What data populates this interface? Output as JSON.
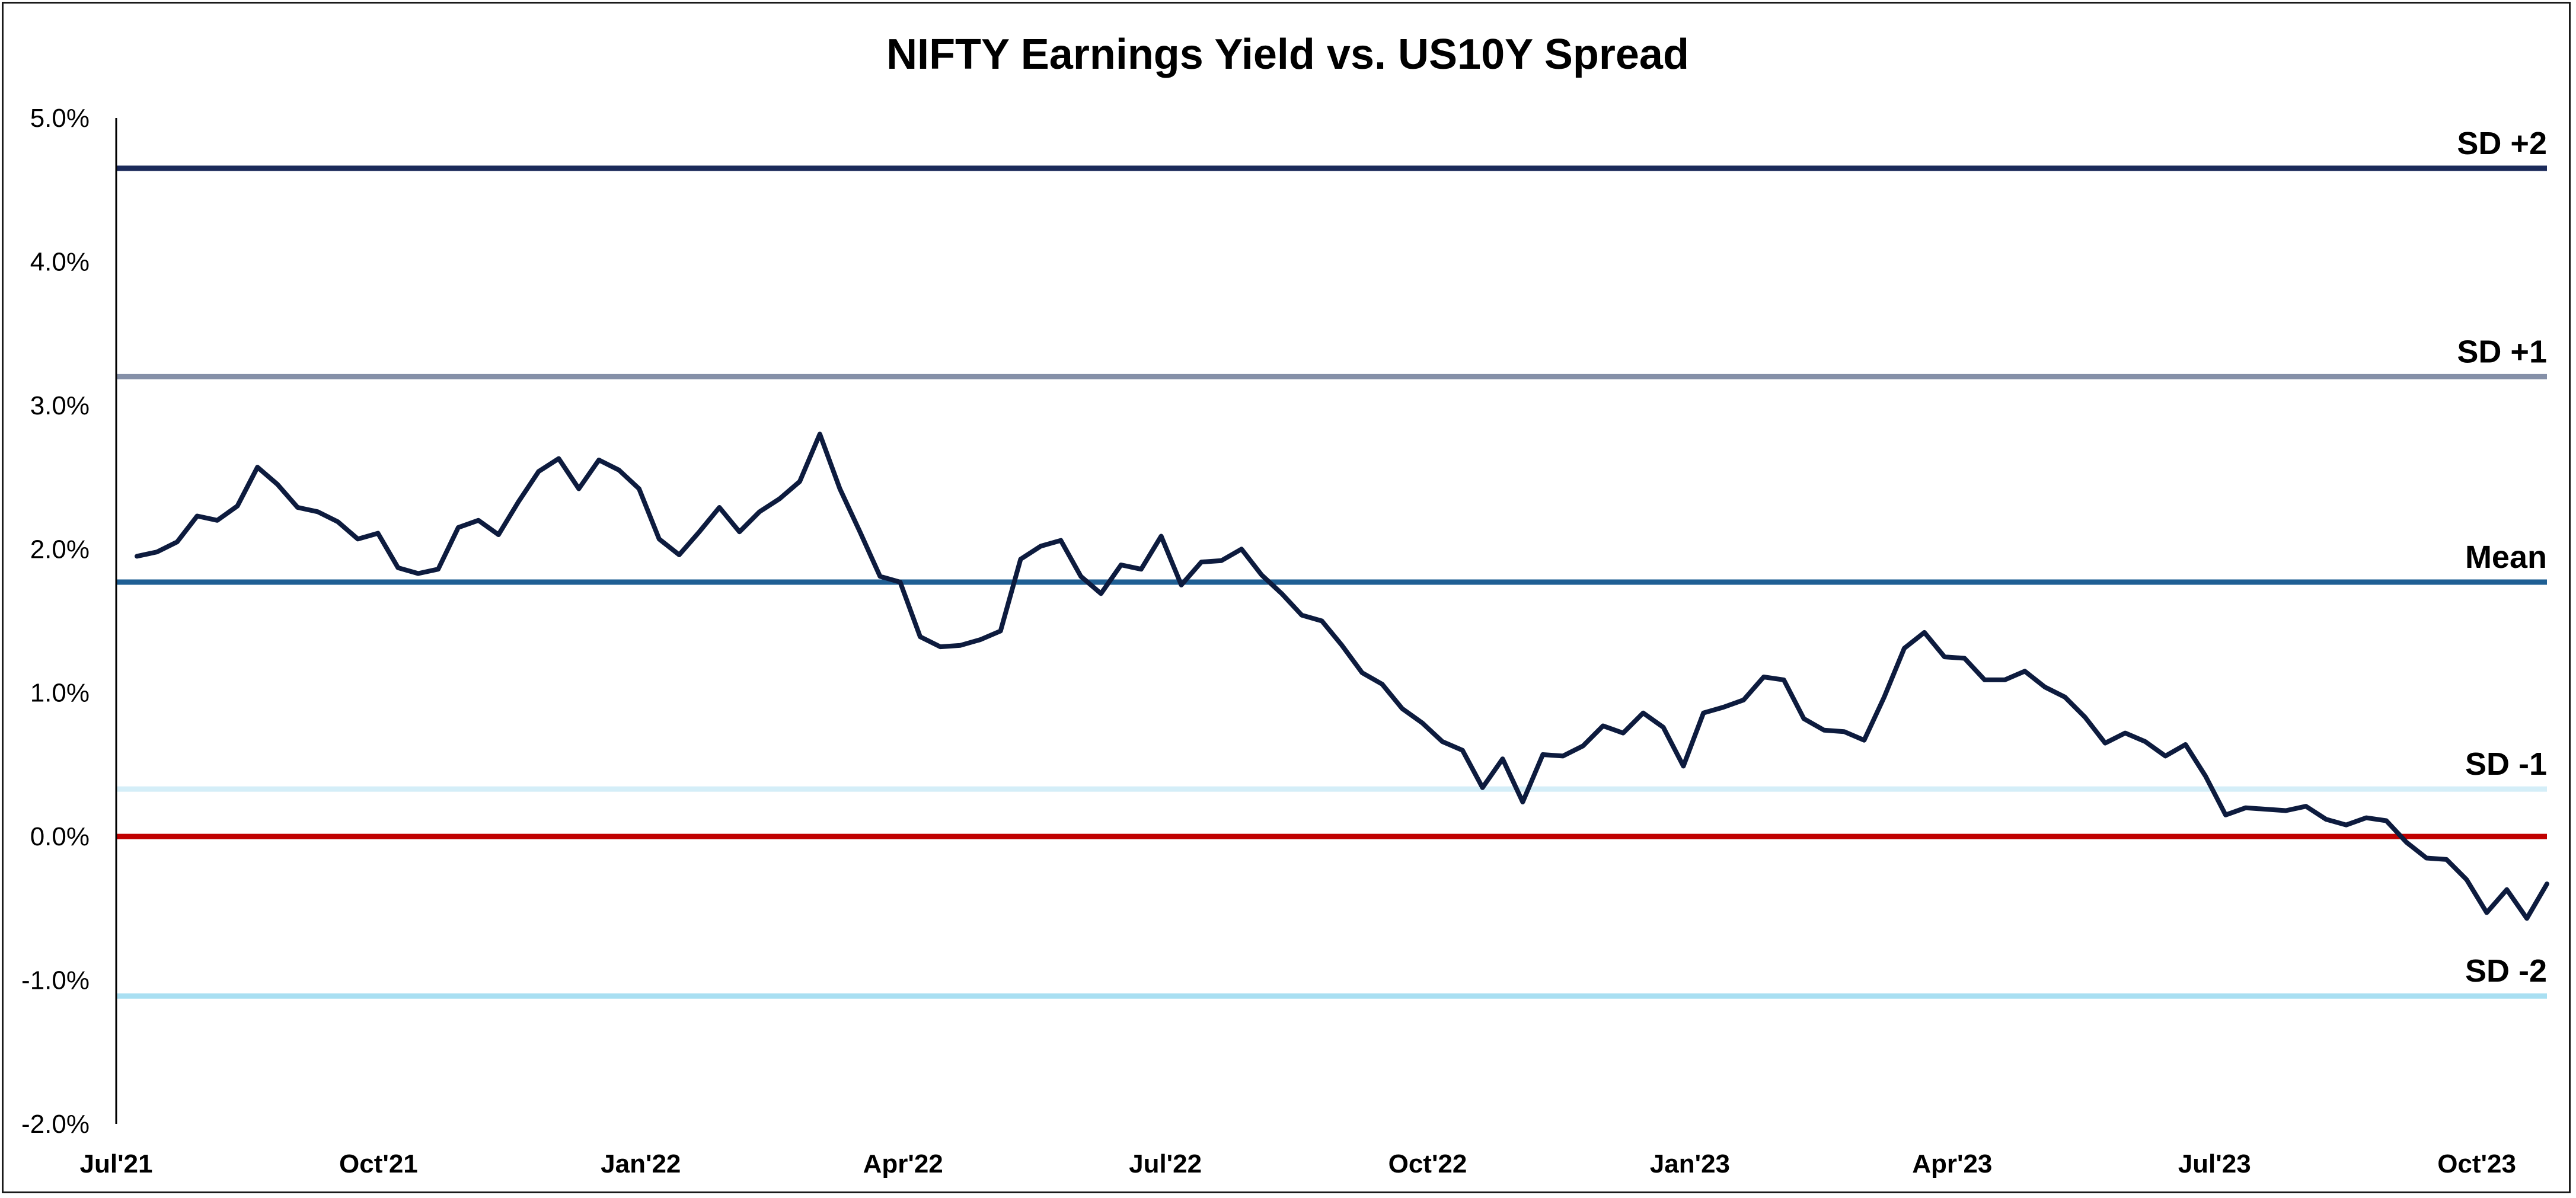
{
  "chart_data": {
    "type": "line",
    "title": "NIFTY Earnings Yield vs. US10Y Spread",
    "xlabel": "",
    "ylabel": "",
    "ylim": [
      -2.0,
      5.0
    ],
    "yticks": [
      "5.0%",
      "4.0%",
      "3.0%",
      "2.0%",
      "1.0%",
      "0.0%",
      "-1.0%",
      "-2.0%"
    ],
    "ytick_values": [
      5,
      4,
      3,
      2,
      1,
      0,
      -1,
      -2
    ],
    "xticks": [
      "Jul'21",
      "Oct'21",
      "Jan'22",
      "Apr'22",
      "Jul'22",
      "Oct'22",
      "Jan'23",
      "Apr'23",
      "Jul'23",
      "Oct'23"
    ],
    "grid": false,
    "reference_lines": [
      {
        "label": "SD +2",
        "value": 4.65,
        "color": "#1b2a5a"
      },
      {
        "label": "SD +1",
        "value": 3.2,
        "color": "#8590a8"
      },
      {
        "label": "Mean",
        "value": 1.77,
        "color": "#1f5f94"
      },
      {
        "label": "SD -1",
        "value": 0.33,
        "color": "#d4eef8"
      },
      {
        "label": "",
        "value": 0.0,
        "color": "#c00000"
      },
      {
        "label": "SD -2",
        "value": -1.11,
        "color": "#a9dff2"
      }
    ],
    "series": [
      {
        "color": "#0d1b3e",
        "values": [
          1.95,
          1.98,
          2.05,
          2.23,
          2.2,
          2.3,
          2.57,
          2.45,
          2.29,
          2.26,
          2.19,
          2.07,
          2.11,
          1.87,
          1.83,
          1.86,
          2.15,
          2.2,
          2.1,
          2.33,
          2.54,
          2.63,
          2.42,
          2.62,
          2.55,
          2.42,
          2.07,
          1.96,
          2.12,
          2.29,
          2.12,
          2.26,
          2.35,
          2.47,
          2.8,
          2.42,
          2.12,
          1.81,
          1.77,
          1.39,
          1.32,
          1.33,
          1.37,
          1.43,
          1.93,
          2.02,
          2.06,
          1.81,
          1.69,
          1.89,
          1.86,
          2.09,
          1.75,
          1.91,
          1.92,
          2.0,
          1.82,
          1.69,
          1.54,
          1.5,
          1.33,
          1.14,
          1.06,
          0.89,
          0.79,
          0.66,
          0.6,
          0.34,
          0.54,
          0.24,
          0.57,
          0.56,
          0.63,
          0.77,
          0.72,
          0.86,
          0.76,
          0.49,
          0.86,
          0.9,
          0.95,
          1.11,
          1.09,
          0.82,
          0.74,
          0.73,
          0.67,
          0.97,
          1.31,
          1.42,
          1.25,
          1.24,
          1.09,
          1.09,
          1.15,
          1.04,
          0.97,
          0.83,
          0.65,
          0.72,
          0.66,
          0.56,
          0.64,
          0.42,
          0.15,
          0.2,
          0.19,
          0.18,
          0.21,
          0.12,
          0.08,
          0.13,
          0.11,
          -0.04,
          -0.15,
          -0.16,
          -0.3,
          -0.53,
          -0.37,
          -0.57,
          -0.33
        ]
      }
    ]
  }
}
